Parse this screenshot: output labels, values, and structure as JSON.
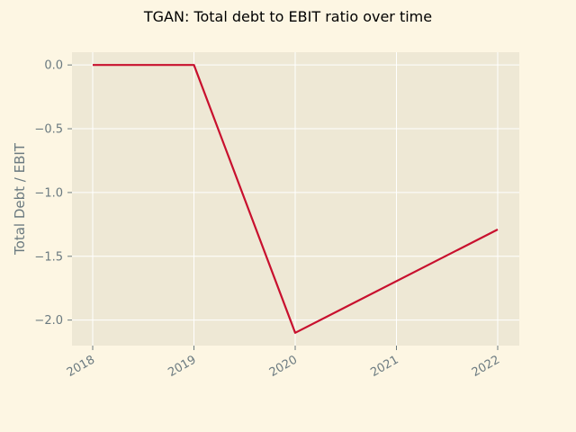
{
  "chart_data": {
    "type": "line",
    "title": "TGAN: Total debt to EBIT ratio over time",
    "xlabel": "",
    "ylabel": "Total Debt / EBIT",
    "x": [
      "2018",
      "2019",
      "2020",
      "2021",
      "2022"
    ],
    "series": [
      {
        "values": [
          0.0,
          0.0,
          -2.1,
          null,
          -1.29
        ]
      }
    ],
    "x_ticks": [
      "2018",
      "2019",
      "2020",
      "2021",
      "2022"
    ],
    "y_ticks": [
      "0.0",
      "−0.5",
      "−1.0",
      "−1.5",
      "−2.0"
    ],
    "y_tick_values": [
      0.0,
      -0.5,
      -1.0,
      -1.5,
      -2.0
    ],
    "ylim": [
      -2.2,
      0.1
    ],
    "grid": true,
    "legend": "none",
    "colors": {
      "background": "#FDF6E3",
      "plot_background": "#EEE8D5",
      "line": "#C8102E",
      "grid": "#FFFFFF",
      "tick_text": "#6b7a80"
    }
  }
}
